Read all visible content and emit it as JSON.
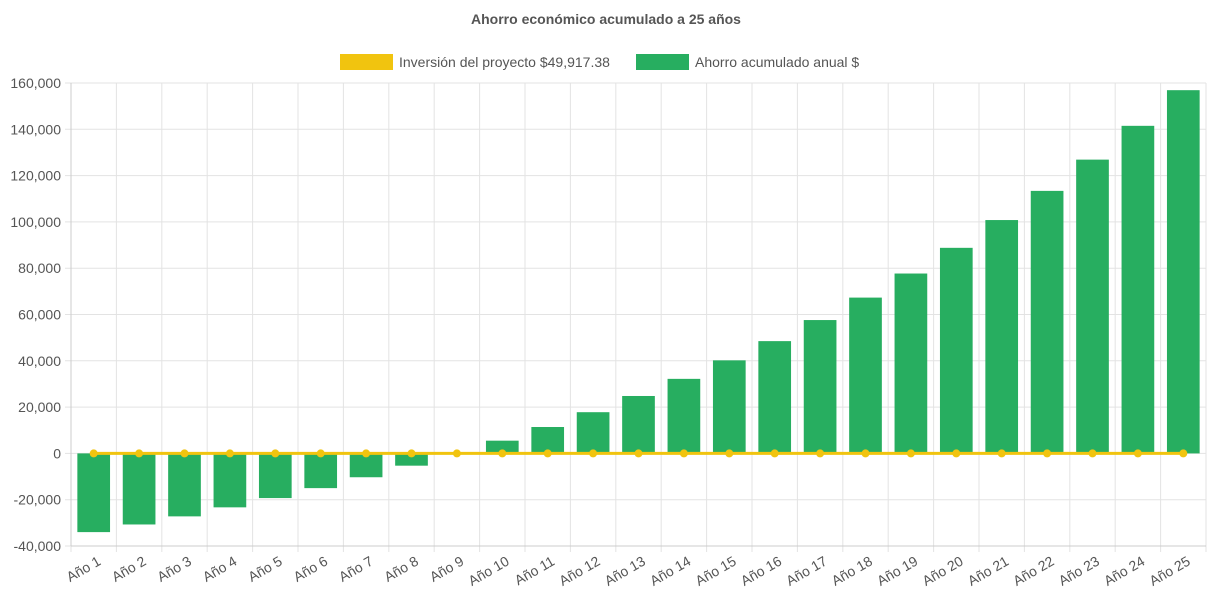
{
  "chart_data": {
    "type": "bar",
    "title": "Ahorro económico acumulado a 25 años",
    "categories": [
      "Año 1",
      "Año 2",
      "Año 3",
      "Año 4",
      "Año 5",
      "Año 6",
      "Año 7",
      "Año 8",
      "Año 9",
      "Año 10",
      "Año 11",
      "Año 12",
      "Año 13",
      "Año 14",
      "Año 15",
      "Año 16",
      "Año 17",
      "Año 18",
      "Año 19",
      "Año 20",
      "Año 21",
      "Año 22",
      "Año 23",
      "Año 24",
      "Año 25"
    ],
    "series": [
      {
        "name": "Inversión del proyecto $49,917.38",
        "type": "line",
        "color": "#f1c40f",
        "values": [
          0,
          0,
          0,
          0,
          0,
          0,
          0,
          0,
          0,
          0,
          0,
          0,
          0,
          0,
          0,
          0,
          0,
          0,
          0,
          0,
          0,
          0,
          0,
          0,
          0
        ]
      },
      {
        "name": "Ahorro acumulado anual $",
        "type": "bar",
        "color": "#27ae60",
        "values": [
          -34000,
          -30700,
          -27200,
          -23300,
          -19300,
          -15000,
          -10300,
          -5300,
          0,
          5500,
          11400,
          17800,
          24800,
          32200,
          40200,
          48500,
          57600,
          67300,
          77700,
          88800,
          100800,
          113400,
          126900,
          141500,
          156900
        ]
      }
    ],
    "xlabel": "",
    "ylabel": "",
    "ylim": [
      -40000,
      160000
    ],
    "yticks": [
      "160,000",
      "140,000",
      "120,000",
      "100,000",
      "80,000",
      "60,000",
      "40,000",
      "20,000",
      "0",
      "-20,000",
      "-40,000"
    ],
    "grid": true,
    "legend_position": "top-center"
  }
}
